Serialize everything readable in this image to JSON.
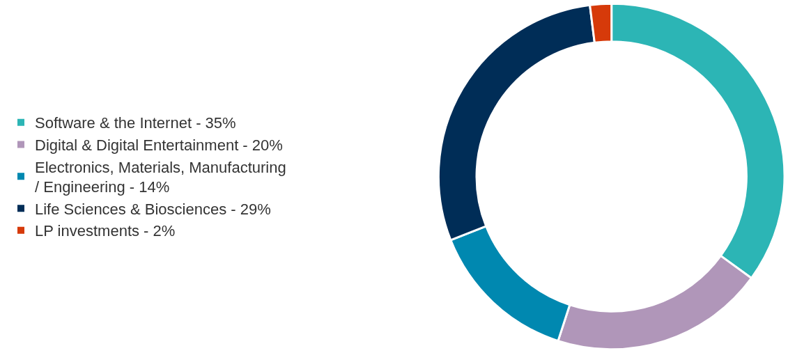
{
  "chart_data": {
    "type": "donut",
    "categories": [
      "Software & the Internet - 35%",
      "Digital & Digital Entertainment - 20%",
      "Electronics, Materials, Manufacturing / Engineering - 14%",
      "Life Sciences & Biosciences - 29%",
      "LP investments - 2%"
    ],
    "values": [
      35,
      20,
      14,
      29,
      2
    ],
    "colors": [
      "#2cb5b5",
      "#b096b9",
      "#0088b0",
      "#002d57",
      "#d63a0a"
    ],
    "legend": "left"
  }
}
